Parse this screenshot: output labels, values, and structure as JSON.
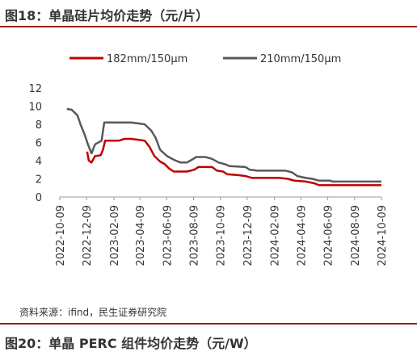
{
  "figure_title": "图18：单晶硅片均价走势（元/片）",
  "source": "资料来源：ifind，民生证券研究院",
  "next_figure_title": "图20：单晶 PERC 组件均价走势（元/W）",
  "chart_data": {
    "type": "line",
    "title": "",
    "xlabel": "",
    "ylabel": "",
    "ylim": [
      0,
      12
    ],
    "yticks": [
      0,
      2,
      4,
      6,
      8,
      10,
      12
    ],
    "xlim": [
      "2022-10-09",
      "2024-10-09"
    ],
    "xticks": [
      "2022-10-09",
      "2022-12-09",
      "2023-02-09",
      "2023-04-09",
      "2023-06-09",
      "2023-08-09",
      "2023-10-09",
      "2023-12-09",
      "2024-02-09",
      "2024-04-09",
      "2024-06-09",
      "2024-08-09",
      "2024-10-09"
    ],
    "grid": false,
    "legend_position": "top",
    "series": [
      {
        "name": "182mm/150μm",
        "color": "#c00000",
        "points": [
          [
            "2022-12-10",
            5.0
          ],
          [
            "2022-12-14",
            4.0
          ],
          [
            "2022-12-20",
            3.8
          ],
          [
            "2022-12-28",
            4.5
          ],
          [
            "2023-01-10",
            4.6
          ],
          [
            "2023-01-15",
            5.2
          ],
          [
            "2023-01-20",
            6.2
          ],
          [
            "2023-02-20",
            6.2
          ],
          [
            "2023-03-05",
            6.4
          ],
          [
            "2023-03-20",
            6.4
          ],
          [
            "2023-04-05",
            6.3
          ],
          [
            "2023-04-20",
            6.2
          ],
          [
            "2023-05-01",
            5.5
          ],
          [
            "2023-05-12",
            4.5
          ],
          [
            "2023-05-25",
            3.9
          ],
          [
            "2023-06-05",
            3.6
          ],
          [
            "2023-06-15",
            3.1
          ],
          [
            "2023-06-25",
            2.8
          ],
          [
            "2023-07-25",
            2.8
          ],
          [
            "2023-08-10",
            3.0
          ],
          [
            "2023-08-20",
            3.3
          ],
          [
            "2023-09-20",
            3.3
          ],
          [
            "2023-10-01",
            2.9
          ],
          [
            "2023-10-15",
            2.8
          ],
          [
            "2023-10-25",
            2.5
          ],
          [
            "2023-11-20",
            2.4
          ],
          [
            "2023-12-05",
            2.3
          ],
          [
            "2023-12-20",
            2.1
          ],
          [
            "2024-02-20",
            2.1
          ],
          [
            "2024-03-10",
            2.0
          ],
          [
            "2024-03-25",
            1.8
          ],
          [
            "2024-04-20",
            1.7
          ],
          [
            "2024-05-10",
            1.5
          ],
          [
            "2024-05-20",
            1.3
          ],
          [
            "2024-10-09",
            1.3
          ]
        ]
      },
      {
        "name": "210mm/150μm",
        "color": "#595959",
        "points": [
          [
            "2022-10-25",
            9.7
          ],
          [
            "2022-11-05",
            9.6
          ],
          [
            "2022-11-18",
            9.0
          ],
          [
            "2022-11-25",
            8.0
          ],
          [
            "2022-12-05",
            6.8
          ],
          [
            "2022-12-12",
            5.8
          ],
          [
            "2022-12-20",
            4.8
          ],
          [
            "2022-12-28",
            5.8
          ],
          [
            "2023-01-12",
            6.2
          ],
          [
            "2023-01-18",
            8.2
          ],
          [
            "2023-03-20",
            8.2
          ],
          [
            "2023-04-05",
            8.1
          ],
          [
            "2023-04-20",
            8.0
          ],
          [
            "2023-05-05",
            7.3
          ],
          [
            "2023-05-15",
            6.5
          ],
          [
            "2023-05-25",
            5.2
          ],
          [
            "2023-06-10",
            4.5
          ],
          [
            "2023-06-25",
            4.1
          ],
          [
            "2023-07-10",
            3.8
          ],
          [
            "2023-07-25",
            3.8
          ],
          [
            "2023-08-05",
            4.1
          ],
          [
            "2023-08-15",
            4.4
          ],
          [
            "2023-09-05",
            4.4
          ],
          [
            "2023-09-20",
            4.2
          ],
          [
            "2023-10-05",
            3.8
          ],
          [
            "2023-10-20",
            3.6
          ],
          [
            "2023-10-30",
            3.4
          ],
          [
            "2023-12-05",
            3.3
          ],
          [
            "2023-12-15",
            3.0
          ],
          [
            "2024-01-01",
            2.9
          ],
          [
            "2024-03-05",
            2.9
          ],
          [
            "2024-03-20",
            2.7
          ],
          [
            "2024-04-01",
            2.3
          ],
          [
            "2024-04-20",
            2.1
          ],
          [
            "2024-05-05",
            2.0
          ],
          [
            "2024-05-20",
            1.8
          ],
          [
            "2024-06-15",
            1.8
          ],
          [
            "2024-06-20",
            1.7
          ],
          [
            "2024-10-09",
            1.7
          ]
        ]
      }
    ]
  }
}
